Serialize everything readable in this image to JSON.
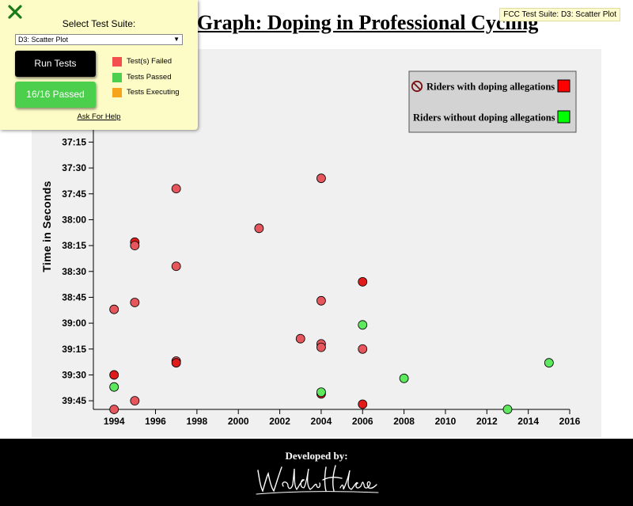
{
  "page": {
    "title": "Scatterplot Graph: Doping in Professional Cycling"
  },
  "fcc": {
    "close_icon": "close-x-icon",
    "close_color": "#1a7a1a",
    "title": "Select Test Suite:",
    "suite_selected": "D3: Scatter Plot",
    "run_label": "Run Tests",
    "passed_label": "16/16 Passed",
    "legend": [
      {
        "label": "Test(s) Failed",
        "color": "#f44f4f"
      },
      {
        "label": "Tests Passed",
        "color": "#4ccf4c"
      },
      {
        "label": "Tests Executing",
        "color": "#f7a41d"
      }
    ],
    "help_label": "Ask For Help",
    "badge": "FCC Test Suite: D3: Scatter Plot"
  },
  "footer": {
    "label": "Developed by:",
    "signature": "Waldo Hidalgo"
  },
  "chart_data": {
    "type": "scatter",
    "title": "Scatterplot Graph: Doping in Professional Cycling",
    "xlabel": "",
    "ylabel": "Time in Seconds",
    "xlim": [
      1993,
      2016
    ],
    "ylim": [
      "36:50",
      "39:50"
    ],
    "x_ticks": [
      "1994",
      "1996",
      "1998",
      "2000",
      "2002",
      "2004",
      "2006",
      "2008",
      "2010",
      "2012",
      "2014",
      "2016"
    ],
    "y_ticks": [
      "37:15",
      "37:30",
      "37:45",
      "38:00",
      "38:15",
      "38:30",
      "38:45",
      "39:00",
      "39:15",
      "39:30",
      "39:45"
    ],
    "legend_position": "top-right",
    "legend": [
      {
        "label": "Riders with doping allegations",
        "color": "#ff0000"
      },
      {
        "label": "Riders without doping allegations",
        "color": "#00ff00"
      }
    ],
    "colors": {
      "doping": "#e5575c",
      "clean": "#5ee85e",
      "doping_dark": "#e01b1b"
    },
    "series": [
      {
        "name": "Riders with doping allegations",
        "points": [
          {
            "x": 1994,
            "y": "39:50"
          },
          {
            "x": 1994,
            "y": "38:52"
          },
          {
            "x": 1994,
            "y": "39:30"
          },
          {
            "x": 1995,
            "y": "38:13"
          },
          {
            "x": 1995,
            "y": "38:15"
          },
          {
            "x": 1995,
            "y": "38:48"
          },
          {
            "x": 1995,
            "y": "39:45"
          },
          {
            "x": 1996,
            "y": "36:55"
          },
          {
            "x": 1997,
            "y": "37:42"
          },
          {
            "x": 1997,
            "y": "38:27"
          },
          {
            "x": 1997,
            "y": "39:22"
          },
          {
            "x": 1997,
            "y": "39:23"
          },
          {
            "x": 2001,
            "y": "38:05"
          },
          {
            "x": 2003,
            "y": "39:09"
          },
          {
            "x": 2004,
            "y": "37:36"
          },
          {
            "x": 2004,
            "y": "38:47"
          },
          {
            "x": 2004,
            "y": "39:12"
          },
          {
            "x": 2004,
            "y": "39:14"
          },
          {
            "x": 2004,
            "y": "39:41"
          },
          {
            "x": 2006,
            "y": "38:36"
          },
          {
            "x": 2006,
            "y": "39:15"
          },
          {
            "x": 2006,
            "y": "39:47"
          }
        ]
      },
      {
        "name": "Riders without doping allegations",
        "points": [
          {
            "x": 1994,
            "y": "39:37"
          },
          {
            "x": 2004,
            "y": "39:40"
          },
          {
            "x": 2006,
            "y": "39:01"
          },
          {
            "x": 2008,
            "y": "39:32"
          },
          {
            "x": 2013,
            "y": "39:50"
          },
          {
            "x": 2015,
            "y": "39:23"
          }
        ]
      }
    ]
  }
}
